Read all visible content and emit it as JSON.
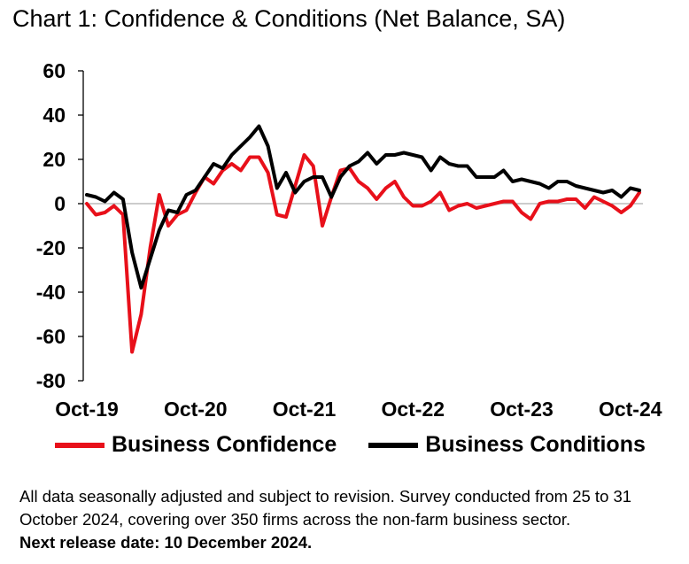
{
  "title": "Chart 1: Confidence & Conditions (Net Balance, SA)",
  "chart_data": {
    "type": "line",
    "title": "Chart 1: Confidence & Conditions (Net Balance, SA)",
    "xlabel": "",
    "ylabel": "",
    "ylim": [
      -80,
      60
    ],
    "y_ticks": [
      60,
      40,
      20,
      0,
      -20,
      -40,
      -60,
      -80
    ],
    "x_tick_labels": [
      "Oct-19",
      "Oct-20",
      "Oct-21",
      "Oct-22",
      "Oct-23",
      "Oct-24"
    ],
    "x_tick_index": [
      0,
      12,
      24,
      36,
      48,
      60
    ],
    "legend_position": "bottom",
    "series": [
      {
        "name": "Business Confidence",
        "color": "#e8101a",
        "values": [
          0,
          -5,
          -4,
          -1,
          -5,
          -67,
          -50,
          -20,
          4,
          -10,
          -5,
          -3,
          5,
          12,
          9,
          15,
          18,
          15,
          21,
          21,
          14,
          -5,
          -6,
          8,
          22,
          17,
          -10,
          3,
          15,
          16,
          10,
          7,
          2,
          7,
          10,
          3,
          -1,
          -1,
          1,
          5,
          -3,
          -1,
          0,
          -2,
          -1,
          0,
          1,
          1,
          -4,
          -7,
          0,
          1,
          1,
          2,
          2,
          -2,
          3,
          1,
          -1,
          -4,
          -1,
          5
        ]
      },
      {
        "name": "Business Conditions",
        "color": "#000000",
        "values": [
          4,
          3,
          1,
          5,
          2,
          -22,
          -38,
          -25,
          -12,
          -3,
          -4,
          4,
          6,
          12,
          18,
          16,
          22,
          26,
          30,
          35,
          26,
          7,
          14,
          5,
          10,
          12,
          12,
          3,
          12,
          17,
          19,
          23,
          18,
          22,
          22,
          23,
          22,
          21,
          15,
          21,
          18,
          17,
          17,
          12,
          12,
          12,
          15,
          10,
          11,
          10,
          9,
          7,
          10,
          10,
          8,
          7,
          6,
          5,
          6,
          3,
          7,
          6
        ]
      }
    ]
  },
  "legend": {
    "items": [
      {
        "label": "Business Confidence",
        "color": "#e8101a"
      },
      {
        "label": "Business Conditions",
        "color": "#000000"
      }
    ]
  },
  "footnote": {
    "text": "All data seasonally adjusted and subject to revision. Survey conducted from 25 to 31 October 2024, covering over 350 firms across the non-farm business sector.",
    "release": "Next release date: 10 December 2024."
  }
}
